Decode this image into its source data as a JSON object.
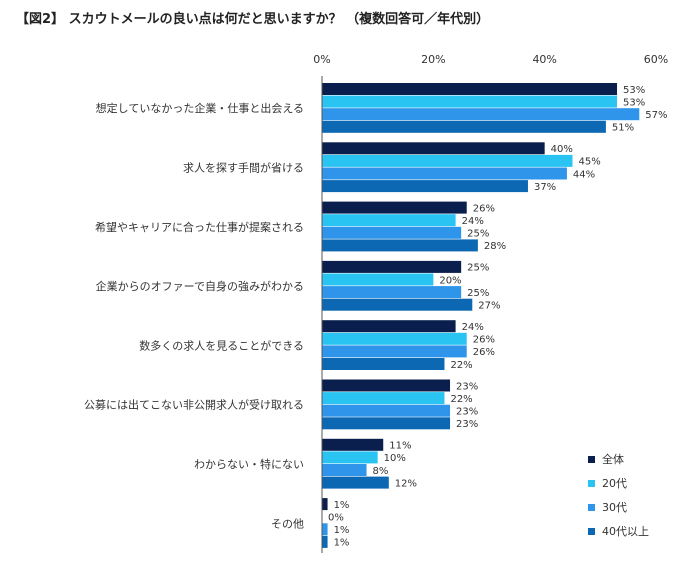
{
  "chart_data": {
    "type": "bar",
    "orientation": "horizontal",
    "title": "【図2】 スカウトメールの良い点は何だと思いますか？ （複数回答可／年代別）",
    "xlim": [
      0,
      60
    ],
    "xticks": [
      0,
      20,
      40,
      60
    ],
    "tick_suffix": "%",
    "value_suffix": "%",
    "grid": false,
    "legend_position": "bottom-right",
    "categories": [
      "想定していなかった企業・仕事と出会える",
      "求人を探す手間が省ける",
      "希望やキャリアに合った仕事が提案される",
      "企業からのオファーで自身の強みがわかる",
      "数多くの求人を見ることができる",
      "公募には出てこない非公開求人が受け取れる",
      "わからない・特にない",
      "その他"
    ],
    "series": [
      {
        "name": "全体",
        "color": "#0a1f4d",
        "values": [
          53,
          40,
          26,
          25,
          24,
          23,
          11,
          1
        ]
      },
      {
        "name": "20代",
        "color": "#29c4f2",
        "values": [
          53,
          45,
          24,
          20,
          26,
          22,
          10,
          0
        ]
      },
      {
        "name": "30代",
        "color": "#2e95ea",
        "values": [
          57,
          44,
          25,
          25,
          26,
          23,
          8,
          1
        ]
      },
      {
        "name": "40代以上",
        "color": "#0c68b3",
        "values": [
          51,
          37,
          28,
          27,
          22,
          23,
          12,
          1
        ]
      }
    ]
  }
}
